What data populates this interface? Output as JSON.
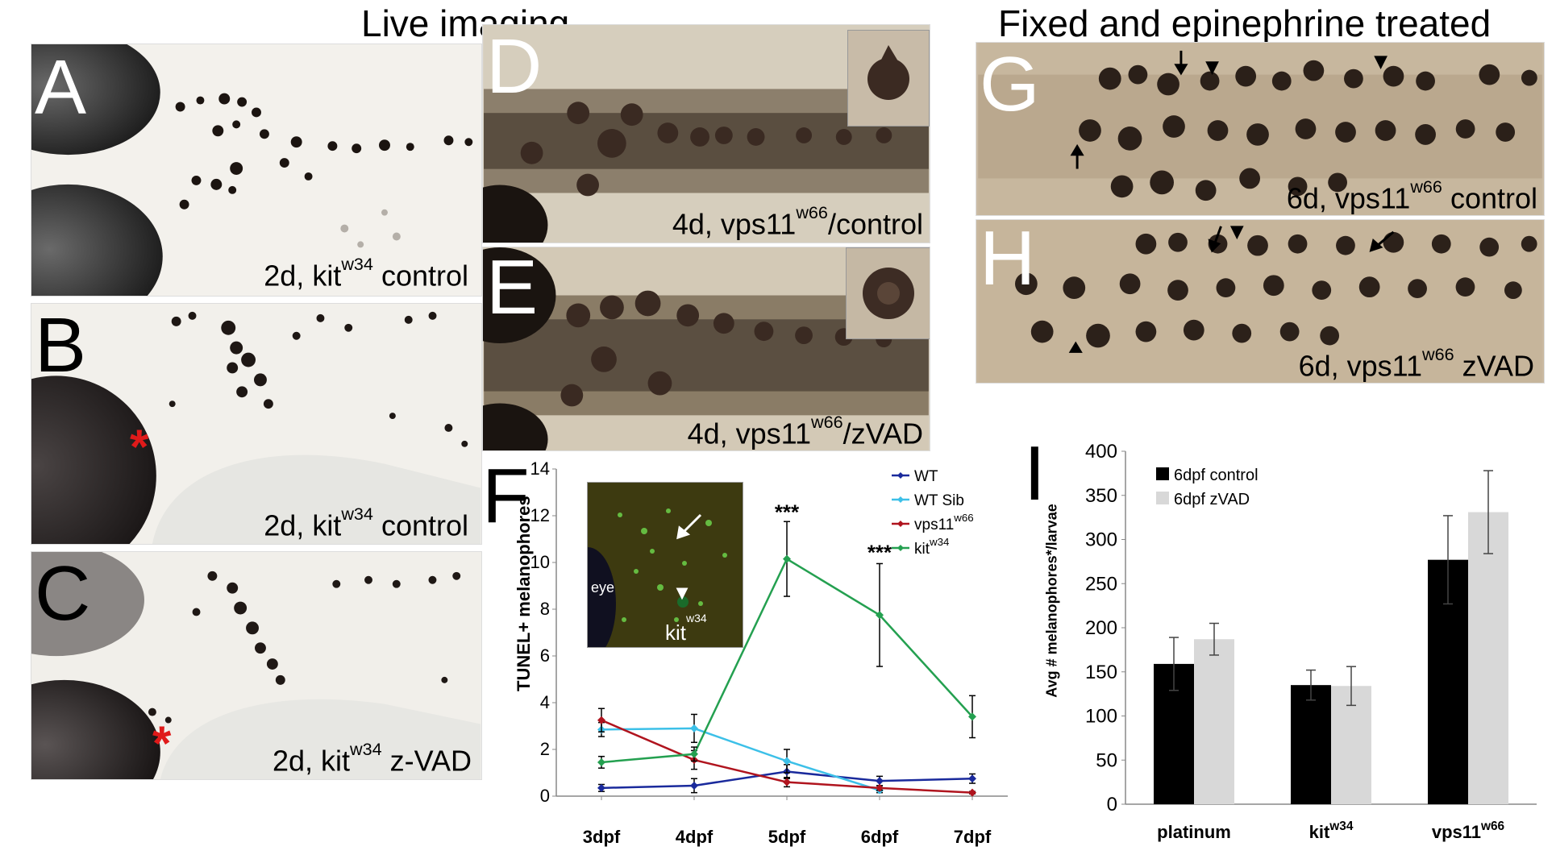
{
  "headers": {
    "live": "Live imaging",
    "fixed": "Fixed and epinephrine treated"
  },
  "panels": {
    "A": {
      "letter": "A",
      "cap_pre": "2d, kit",
      "cap_sup": "w34",
      "cap_post": " control"
    },
    "B": {
      "letter": "B",
      "cap_pre": "2d, kit",
      "cap_sup": "w34",
      "cap_post": " control",
      "marker": "*"
    },
    "C": {
      "letter": "C",
      "cap_pre": "2d, kit",
      "cap_sup": "w34",
      "cap_post": " z-VAD",
      "marker": "*"
    },
    "D": {
      "letter": "D",
      "cap_pre": "4d, vps11",
      "cap_sup": "w66",
      "cap_post": "/control"
    },
    "E": {
      "letter": "E",
      "cap_pre": "4d, vps11",
      "cap_sup": "w66",
      "cap_post": "/zVAD"
    },
    "G": {
      "letter": "G",
      "cap_pre": "6d, vps11",
      "cap_sup": "w66",
      "cap_post": " control"
    },
    "H": {
      "letter": "H",
      "cap_pre": "6d, vps11",
      "cap_sup": "w66",
      "cap_post": " zVAD"
    },
    "F": {
      "letter": "F",
      "inset_eye": "eye",
      "inset_pre": "kit",
      "inset_sup": "w34"
    },
    "I": {
      "letter": "I"
    }
  },
  "chart_data": [
    {
      "type": "line",
      "panel": "F",
      "title": "",
      "ylabel": "TUNEL+ melanophores",
      "xlabel": "",
      "categories": [
        "3dpf",
        "4dpf",
        "5dpf",
        "6dpf",
        "7dpf"
      ],
      "ylim": [
        0,
        14
      ],
      "yticks": [
        0,
        2,
        4,
        6,
        8,
        10,
        12,
        14
      ],
      "grid": false,
      "legend_position": "top-right",
      "significance": [
        {
          "category": "5dpf",
          "label": "***"
        },
        {
          "category": "6dpf",
          "label": "***"
        }
      ],
      "series": [
        {
          "name": "WT",
          "name_sup": "",
          "color": "#1a2a9c",
          "values": [
            0.35,
            0.45,
            1.05,
            0.65,
            0.75
          ],
          "errors": [
            0.15,
            0.3,
            0.3,
            0.2,
            0.2
          ]
        },
        {
          "name": "WT Sib",
          "name_sup": "",
          "color": "#3cc0e8",
          "values": [
            2.85,
            2.9,
            1.5,
            0.25,
            null
          ],
          "errors": [
            0.3,
            0.6,
            0.5,
            0.1,
            null
          ]
        },
        {
          "name": "vps11",
          "name_sup": "w66",
          "color": "#b0141e",
          "values": [
            3.25,
            1.55,
            0.6,
            0.35,
            0.15
          ],
          "errors": [
            0.5,
            0.4,
            0.2,
            0.1,
            0.05
          ]
        },
        {
          "name": "kit",
          "name_sup": "w34",
          "color": "#24a050",
          "values": [
            1.45,
            1.8,
            10.15,
            7.75,
            3.4
          ],
          "errors": [
            0.25,
            0.3,
            1.6,
            2.2,
            0.9
          ]
        }
      ]
    },
    {
      "type": "bar",
      "panel": "I",
      "title": "",
      "ylabel": "Avg # melanophores*/larvae",
      "xlabel": "",
      "categories": [
        {
          "name": "platinum",
          "sup": ""
        },
        {
          "name": "kit",
          "sup": "w34"
        },
        {
          "name": "vps11",
          "sup": "w66"
        }
      ],
      "ylim": [
        0,
        400
      ],
      "yticks": [
        0,
        50,
        100,
        150,
        200,
        250,
        300,
        350,
        400
      ],
      "grid": false,
      "legend_position": "top-left",
      "series": [
        {
          "name": "6dpf control",
          "color": "#000000",
          "values": [
            159,
            135,
            277
          ],
          "errors": [
            30,
            17,
            50
          ]
        },
        {
          "name": "6dpf zVAD",
          "color": "#d8d8d8",
          "values": [
            187,
            134,
            331
          ],
          "errors": [
            18,
            22,
            47
          ]
        }
      ]
    }
  ]
}
